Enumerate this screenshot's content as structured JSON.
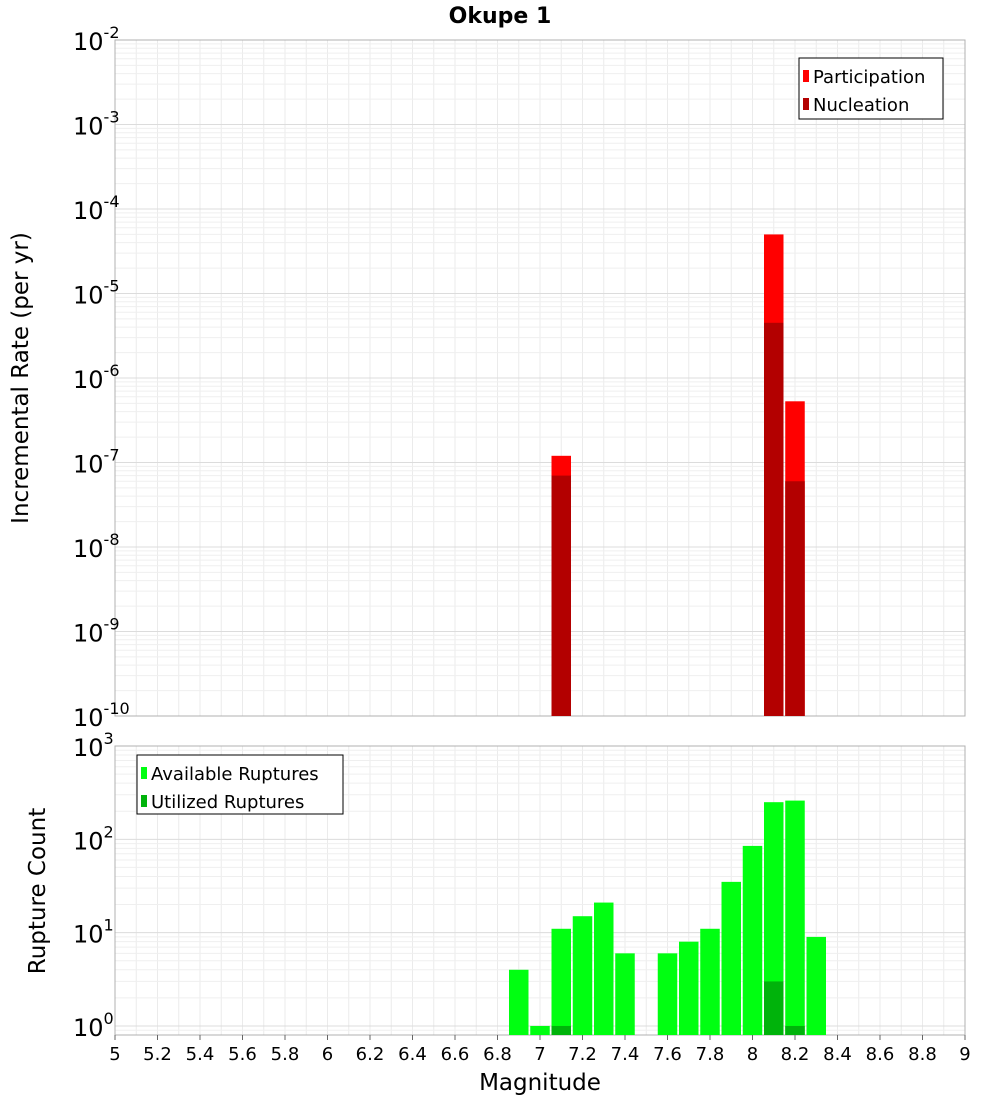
{
  "chart_data": [
    {
      "type": "bar",
      "title": "Okupe 1",
      "xlabel": "",
      "ylabel": "Incremental Rate (per yr)",
      "xlim": [
        5,
        9
      ],
      "ylim": [
        1e-10,
        0.01
      ],
      "yscale": "log",
      "y_tick_exponents": [
        -10,
        -9,
        -8,
        -7,
        -6,
        -5,
        -4,
        -3,
        -2
      ],
      "grid": true,
      "legend": "top-right",
      "colors": {
        "Participation": "#ff0000",
        "Nucleation": "#b30000"
      },
      "series": [
        {
          "name": "Participation",
          "x": [
            7.1,
            8.1,
            8.2
          ],
          "values": [
            1.2e-07,
            5e-05,
            5.3e-07
          ]
        },
        {
          "name": "Nucleation",
          "x": [
            7.1,
            8.1,
            8.2
          ],
          "values": [
            7e-08,
            4.5e-06,
            6e-08
          ]
        }
      ]
    },
    {
      "type": "bar",
      "title": "",
      "xlabel": "Magnitude",
      "ylabel": "Rupture Count",
      "xlim": [
        5,
        9
      ],
      "ylim": [
        0.8,
        1000
      ],
      "yscale": "log",
      "y_tick_exponents": [
        0,
        1,
        2,
        3
      ],
      "x_ticks": [
        "5",
        "5.2",
        "5.4",
        "5.6",
        "5.8",
        "6",
        "6.2",
        "6.4",
        "6.6",
        "6.8",
        "7",
        "7.2",
        "7.4",
        "7.6",
        "7.8",
        "8",
        "8.2",
        "8.4",
        "8.6",
        "8.8",
        "9"
      ],
      "grid": true,
      "legend": "top-left",
      "colors": {
        "Available Ruptures": "#00ff11",
        "Utilized Ruptures": "#00b30b"
      },
      "series": [
        {
          "name": "Available Ruptures",
          "x": [
            6.9,
            7.0,
            7.1,
            7.2,
            7.3,
            7.4,
            7.6,
            7.7,
            7.8,
            7.9,
            8.0,
            8.1,
            8.2,
            8.3
          ],
          "values": [
            4,
            1,
            11,
            15,
            21,
            6,
            6,
            8,
            11,
            35,
            85,
            250,
            260,
            9
          ]
        },
        {
          "name": "Utilized Ruptures",
          "x": [
            7.1,
            8.1,
            8.2
          ],
          "values": [
            1,
            3,
            1
          ]
        }
      ]
    }
  ]
}
